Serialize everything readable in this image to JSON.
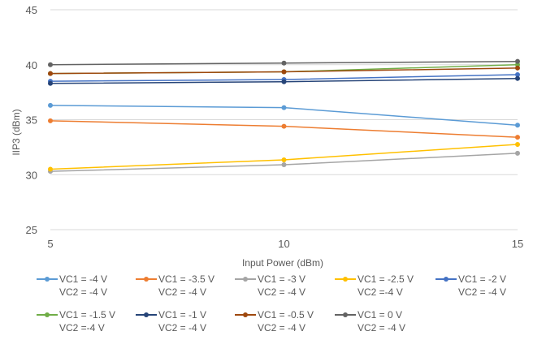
{
  "chart_data": {
    "type": "line",
    "title": "",
    "xlabel": "Input Power (dBm)",
    "ylabel": "IIP3 (dBm)",
    "x": [
      5,
      10,
      15
    ],
    "x_ticks": [
      "5",
      "10",
      "15"
    ],
    "y_ticks": [
      "25",
      "30",
      "35",
      "40",
      "45"
    ],
    "xlim": [
      5,
      15
    ],
    "ylim": [
      25,
      45
    ],
    "grid": "horizontal",
    "legend_position": "bottom",
    "series": [
      {
        "name": "VC1 = -4 V",
        "name2": "VC2 = -4 V",
        "color": "#5B9BD5",
        "values": [
          36.3,
          36.1,
          34.5
        ]
      },
      {
        "name": "VC1 = -3.5 V",
        "name2": "VC2 = -4 V",
        "color": "#ED7D31",
        "values": [
          34.9,
          34.4,
          33.4
        ]
      },
      {
        "name": "VC1 = -3 V",
        "name2": "VC2 = -4 V",
        "color": "#A5A5A5",
        "values": [
          30.3,
          30.9,
          31.95
        ]
      },
      {
        "name": "VC1 = -2.5 V",
        "name2": "VC2 =-4 V",
        "color": "#FFC000",
        "values": [
          30.5,
          31.35,
          32.75
        ]
      },
      {
        "name": "VC1 = -2 V",
        "name2": "VC2 = -4 V",
        "color": "#4472C4",
        "values": [
          38.5,
          38.65,
          39.1
        ]
      },
      {
        "name": "VC1 = -1.5 V",
        "name2": "VC2 =-4 V",
        "color": "#70AD47",
        "values": [
          39.2,
          39.35,
          40.0
        ]
      },
      {
        "name": "VC1 = -1 V",
        "name2": "VC2 = -4 V",
        "color": "#264478",
        "values": [
          38.3,
          38.45,
          38.75
        ]
      },
      {
        "name": "VC1 = -0.5 V",
        "name2": "VC2 = -4 V",
        "color": "#9E480E",
        "values": [
          39.2,
          39.35,
          39.7
        ]
      },
      {
        "name": "VC1 = 0 V",
        "name2": "VC2 = -4 V",
        "color": "#636363",
        "values": [
          40.0,
          40.15,
          40.3
        ]
      }
    ]
  }
}
